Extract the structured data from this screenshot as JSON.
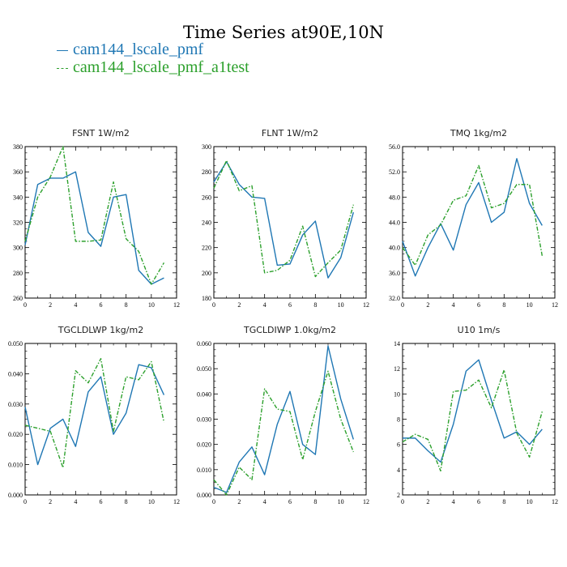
{
  "title": "Time Series at90E,10N",
  "legend": [
    {
      "name": "cam144_lscale_pmf",
      "color": "#1f77b4",
      "style": "solid"
    },
    {
      "name": "cam144_lscale_pmf_a1test",
      "color": "#2ca02c",
      "style": "dashed"
    }
  ],
  "chart_data": [
    {
      "type": "line",
      "title": "FSNT   1W/m2",
      "xlim": [
        0,
        12
      ],
      "ylim": [
        260,
        380
      ],
      "xticks": [
        "0",
        "2",
        "4",
        "6",
        "8",
        "10",
        "12"
      ],
      "yticks": [
        "260",
        "280",
        "300",
        "320",
        "340",
        "360",
        "380"
      ],
      "x": [
        0,
        1,
        2,
        3,
        4,
        5,
        6,
        7,
        8,
        9,
        10,
        11
      ],
      "series": [
        {
          "name": "cam144_lscale_pmf",
          "values": [
            302,
            350,
            355,
            355,
            360,
            312,
            301,
            340,
            342,
            282,
            271,
            276
          ]
        },
        {
          "name": "cam144_lscale_pmf_a1test",
          "values": [
            305,
            340,
            356,
            380,
            305,
            305,
            306,
            352,
            307,
            297,
            271,
            288
          ]
        }
      ]
    },
    {
      "type": "line",
      "title": "FLNT   1W/m2",
      "xlim": [
        0,
        12
      ],
      "ylim": [
        180,
        300
      ],
      "xticks": [
        "0",
        "2",
        "4",
        "6",
        "8",
        "10",
        "12"
      ],
      "yticks": [
        "180",
        "200",
        "220",
        "240",
        "260",
        "280",
        "300"
      ],
      "x": [
        0,
        1,
        2,
        3,
        4,
        5,
        6,
        7,
        8,
        9,
        10,
        11
      ],
      "series": [
        {
          "name": "cam144_lscale_pmf",
          "values": [
            272,
            288,
            270,
            260,
            259,
            206,
            207,
            230,
            241,
            196,
            212,
            248
          ]
        },
        {
          "name": "cam144_lscale_pmf_a1test",
          "values": [
            267,
            289,
            265,
            269,
            200,
            202,
            210,
            237,
            197,
            208,
            218,
            254
          ]
        }
      ]
    },
    {
      "type": "line",
      "title": "TMQ   1kg/m2",
      "xlim": [
        0,
        12
      ],
      "ylim": [
        32,
        56
      ],
      "xticks": [
        "0",
        "2",
        "4",
        "6",
        "8",
        "10",
        "12"
      ],
      "yticks": [
        "32.0",
        "36.0",
        "40.0",
        "44.0",
        "48.0",
        "52.0",
        "56.0"
      ],
      "x": [
        0,
        1,
        2,
        3,
        4,
        5,
        6,
        7,
        8,
        9,
        10,
        11
      ],
      "series": [
        {
          "name": "cam144_lscale_pmf",
          "values": [
            41.0,
            35.5,
            40.0,
            43.8,
            39.6,
            46.8,
            50.3,
            44.0,
            45.6,
            54.1,
            47.0,
            43.5
          ]
        },
        {
          "name": "cam144_lscale_pmf_a1test",
          "values": [
            40.0,
            37.2,
            42.0,
            43.6,
            47.5,
            48.2,
            53.0,
            46.3,
            47.0,
            50.0,
            50.0,
            38.7
          ]
        }
      ]
    },
    {
      "type": "line",
      "title": "TGCLDLWP   1kg/m2",
      "xlim": [
        0,
        12
      ],
      "ylim": [
        0,
        0.05
      ],
      "xticks": [
        "0",
        "2",
        "4",
        "6",
        "8",
        "10",
        "12"
      ],
      "yticks": [
        "0.000",
        "0.010",
        "0.020",
        "0.030",
        "0.040",
        "0.050"
      ],
      "x": [
        0,
        1,
        2,
        3,
        4,
        5,
        6,
        7,
        8,
        9,
        10,
        11
      ],
      "series": [
        {
          "name": "cam144_lscale_pmf",
          "values": [
            0.029,
            0.01,
            0.022,
            0.025,
            0.016,
            0.034,
            0.039,
            0.02,
            0.027,
            0.043,
            0.042,
            0.033
          ]
        },
        {
          "name": "cam144_lscale_pmf_a1test",
          "values": [
            0.023,
            0.022,
            0.021,
            0.009,
            0.041,
            0.037,
            0.045,
            0.021,
            0.039,
            0.038,
            0.044,
            0.024
          ]
        }
      ]
    },
    {
      "type": "line",
      "title": "TGCLDIWP   1.0kg/m2",
      "xlim": [
        0,
        12
      ],
      "ylim": [
        0,
        0.06
      ],
      "xticks": [
        "0",
        "2",
        "4",
        "6",
        "8",
        "10",
        "12"
      ],
      "yticks": [
        "0.000",
        "0.010",
        "0.020",
        "0.030",
        "0.040",
        "0.050",
        "0.060"
      ],
      "x": [
        0,
        1,
        2,
        3,
        4,
        5,
        6,
        7,
        8,
        9,
        10,
        11
      ],
      "series": [
        {
          "name": "cam144_lscale_pmf",
          "values": [
            0.003,
            0.001,
            0.013,
            0.019,
            0.008,
            0.028,
            0.041,
            0.02,
            0.016,
            0.059,
            0.038,
            0.022
          ]
        },
        {
          "name": "cam144_lscale_pmf_a1test",
          "values": [
            0.006,
            0.0,
            0.011,
            0.006,
            0.042,
            0.034,
            0.033,
            0.014,
            0.033,
            0.049,
            0.03,
            0.017
          ]
        }
      ]
    },
    {
      "type": "line",
      "title": "U10   1m/s",
      "xlim": [
        0,
        12
      ],
      "ylim": [
        2,
        14
      ],
      "xticks": [
        "0",
        "2",
        "4",
        "6",
        "8",
        "10",
        "12"
      ],
      "yticks": [
        "2",
        "4",
        "6",
        "8",
        "10",
        "12",
        "14"
      ],
      "x": [
        0,
        1,
        2,
        3,
        4,
        5,
        6,
        7,
        8,
        9,
        10,
        11
      ],
      "series": [
        {
          "name": "cam144_lscale_pmf",
          "values": [
            6.5,
            6.5,
            5.5,
            4.6,
            7.6,
            11.8,
            12.7,
            9.5,
            6.5,
            7.0,
            6.0,
            7.2
          ]
        },
        {
          "name": "cam144_lscale_pmf_a1test",
          "values": [
            6.2,
            6.8,
            6.4,
            3.9,
            10.2,
            10.3,
            11.1,
            8.9,
            11.9,
            6.9,
            5.0,
            8.6
          ]
        }
      ]
    }
  ]
}
